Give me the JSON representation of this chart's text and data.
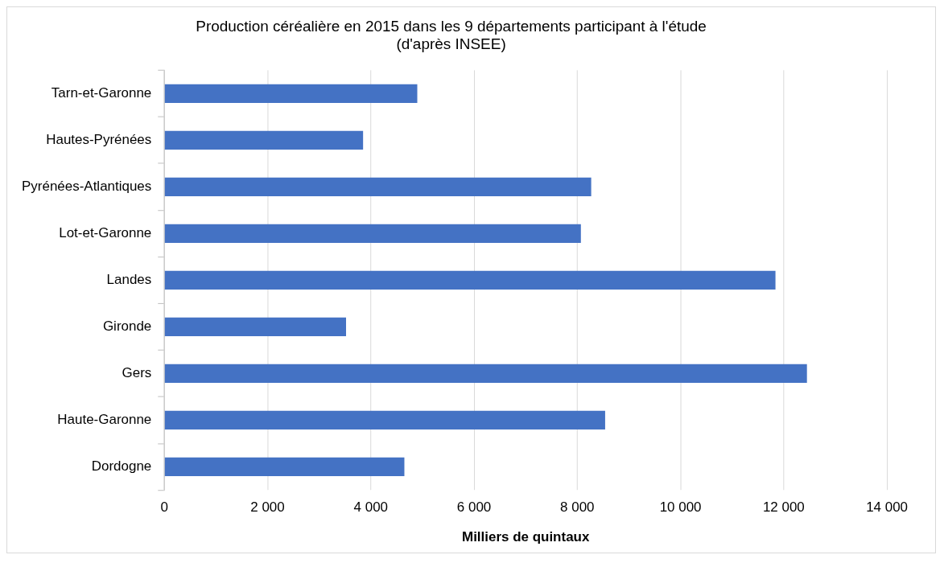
{
  "chart_data": {
    "type": "bar",
    "orientation": "horizontal",
    "title": [
      "Production céréalière en 2015 dans les 9 départements participant à l'étude",
      "(d'après INSEE)"
    ],
    "xlabel": "Milliers de quintaux",
    "categories": [
      "Tarn-et-Garonne",
      "Hautes-Pyrénées",
      "Pyrénées-Atlantiques",
      "Lot-et-Garonne",
      "Landes",
      "Gironde",
      "Gers",
      "Haute-Garonne",
      "Dordogne"
    ],
    "values": [
      4900,
      3850,
      8270,
      8070,
      11840,
      3520,
      12450,
      8540,
      4650
    ],
    "color": "#4472c4",
    "xlim": [
      0,
      14000
    ],
    "xticks": [
      0,
      {
        "value": 2000,
        "label": "2 000"
      },
      {
        "value": 4000,
        "label": "4 000"
      },
      {
        "value": 6000,
        "label": "6 000"
      },
      {
        "value": 8000,
        "label": "8 000"
      },
      {
        "value": 10000,
        "label": "10 000"
      },
      {
        "value": 12000,
        "label": "12 000"
      },
      {
        "value": 14000,
        "label": "14 000"
      }
    ],
    "grid": "x",
    "legend": false
  }
}
